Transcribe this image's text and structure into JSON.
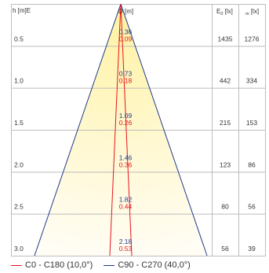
{
  "header": {
    "height_label": "h [m]E",
    "diameter_label": "D [m]",
    "e0_label": "E",
    "e0_sub": "0",
    "e0_unit": " [lx]",
    "em_sub": "m",
    "em_unit": " [lx]"
  },
  "colors": {
    "c0_line": "#e8141e",
    "c90_line": "#1f3a8c",
    "grid": "#bdbdbd",
    "beam_core": "#fff6b0",
    "beam_edge": "#fffaf0"
  },
  "chart_data": {
    "type": "table",
    "heights": [
      0.5,
      1.0,
      1.5,
      2.0,
      2.5,
      3.0
    ],
    "rows": [
      {
        "h": "0.5",
        "d_c90": "0.36",
        "d_c0": "0.09",
        "e0": "1435",
        "em": "1276"
      },
      {
        "h": "1.0",
        "d_c90": "0.73",
        "d_c0": "0.18",
        "e0": "442",
        "em": "334"
      },
      {
        "h": "1.5",
        "d_c90": "1.09",
        "d_c0": "0.26",
        "e0": "215",
        "em": "153"
      },
      {
        "h": "2.0",
        "d_c90": "1.46",
        "d_c0": "0.36",
        "e0": "123",
        "em": "86"
      },
      {
        "h": "2.5",
        "d_c90": "1.82",
        "d_c0": "0.44",
        "e0": "80",
        "em": "56"
      },
      {
        "h": "3.0",
        "d_c90": "2.18",
        "d_c0": "0.53",
        "e0": "56",
        "em": "39"
      }
    ],
    "beam_angle_c0_deg": 10.0,
    "beam_angle_c90_deg": 40.0
  },
  "legend": [
    {
      "label": "C0 - C180 (10,0°)",
      "color": "#e8141e"
    },
    {
      "label": "C90 - C270 (40,0°)",
      "color": "#1f3a8c"
    }
  ]
}
